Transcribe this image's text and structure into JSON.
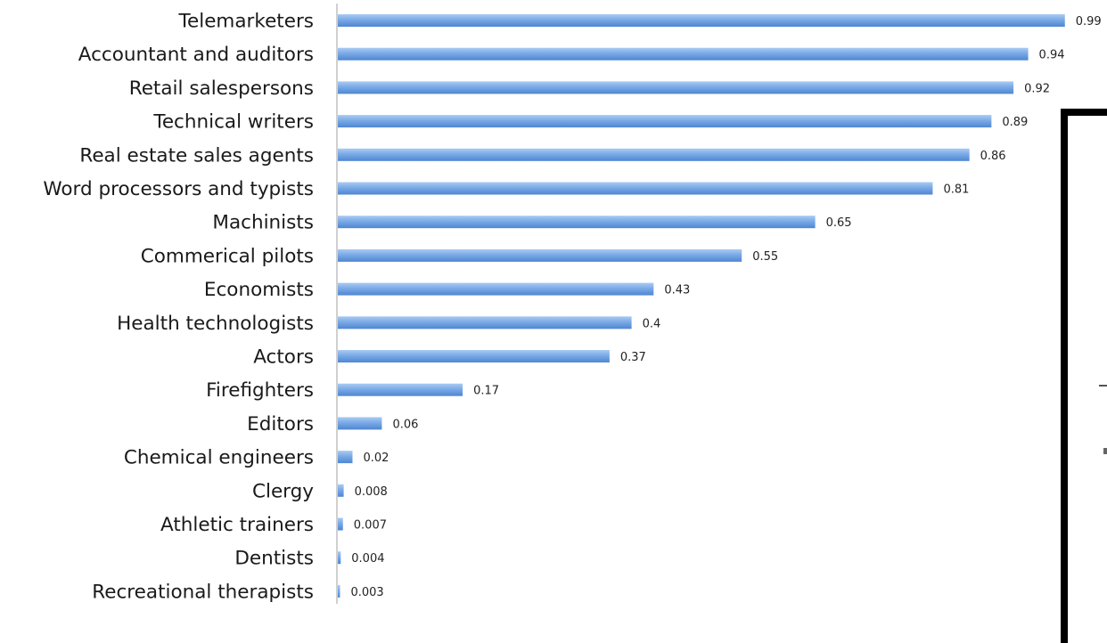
{
  "chart_data": {
    "type": "bar",
    "orientation": "horizontal",
    "categories": [
      "Telemarketers",
      "Accountant and auditors",
      "Retail salespersons",
      "Technical writers",
      "Real estate sales agents",
      "Word processors and typists",
      "Machinists",
      "Commerical pilots",
      "Economists",
      "Health technologists",
      "Actors",
      "Firefighters",
      "Editors",
      "Chemical engineers",
      "Clergy",
      "Athletic trainers",
      "Dentists",
      "Recreational therapists"
    ],
    "values": [
      0.99,
      0.94,
      0.92,
      0.89,
      0.86,
      0.81,
      0.65,
      0.55,
      0.43,
      0.4,
      0.37,
      0.17,
      0.06,
      0.02,
      0.008,
      0.007,
      0.004,
      0.003
    ],
    "value_labels": [
      "0.99",
      "0.94",
      "0.92",
      "0.89",
      "0.86",
      "0.81",
      "0.65",
      "0.55",
      "0.43",
      "0.4",
      "0.37",
      "0.17",
      "0.06",
      "0.02",
      "0.008",
      "0.007",
      "0.004",
      "0.003"
    ],
    "xlim": [
      0,
      1
    ],
    "grid": false,
    "legend": "none",
    "bar_color": "#7aaae6",
    "bar_color_light": "#a9cbf3",
    "bar_color_dark": "#4f86d2",
    "axis_color": "#b0b0b0"
  }
}
